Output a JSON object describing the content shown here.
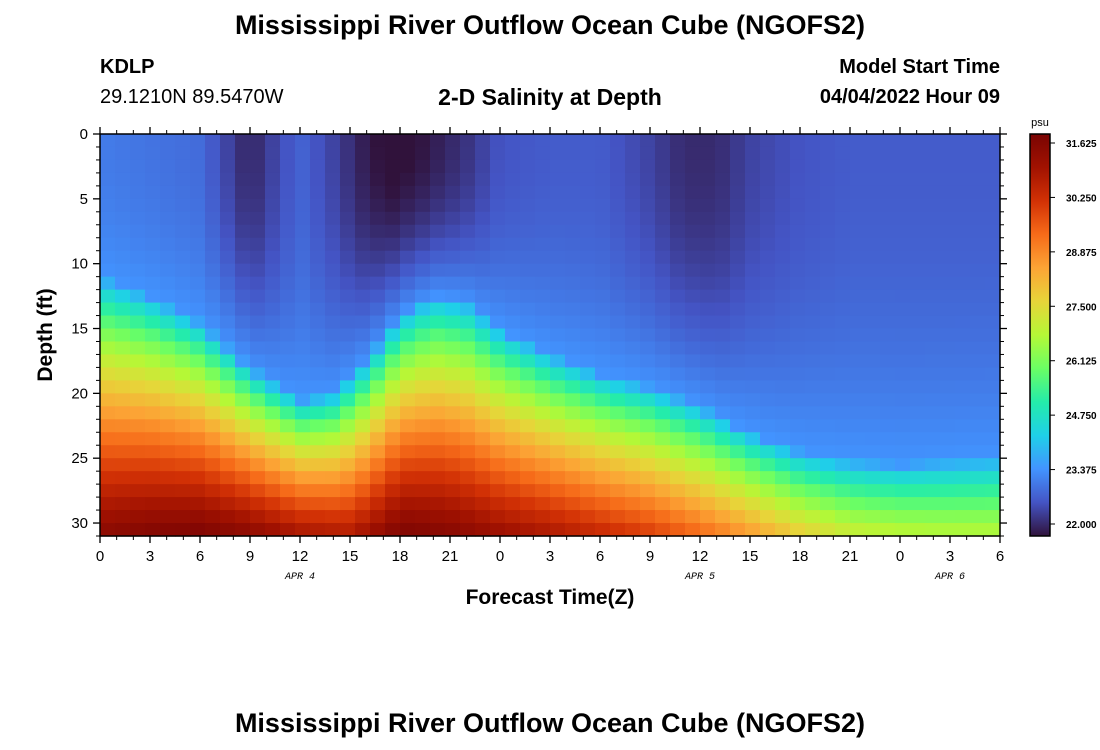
{
  "header": {
    "title": "Mississippi River Outflow Ocean Cube (NGOFS2)",
    "station": "KDLP",
    "coords": "29.1210N  89.5470W",
    "subtitle": "2-D Salinity at Depth",
    "model_start_label": "Model Start Time",
    "model_start_value": "04/04/2022 Hour 09"
  },
  "footer": {
    "title": "Mississippi River Outflow Ocean Cube (NGOFS2)"
  },
  "chart_data": {
    "type": "heatmap",
    "title": "2-D Salinity at Depth",
    "xlabel": "Forecast Time(Z)",
    "ylabel": "Depth (ft)",
    "x_range": [
      0,
      54
    ],
    "y_range": [
      0,
      31
    ],
    "x_ticks": [
      0,
      3,
      6,
      9,
      12,
      15,
      18,
      21,
      24,
      27,
      30,
      33,
      36,
      39,
      42,
      45,
      48,
      51,
      54
    ],
    "x_tick_labels": [
      "0",
      "3",
      "6",
      "9",
      "12",
      "15",
      "18",
      "21",
      "0",
      "3",
      "6",
      "9",
      "12",
      "15",
      "18",
      "21",
      "0",
      "3",
      "6"
    ],
    "y_ticks": [
      0,
      5,
      10,
      15,
      20,
      25,
      30
    ],
    "y_tick_labels": [
      "0",
      "5",
      "10",
      "15",
      "20",
      "25",
      "30"
    ],
    "date_labels": [
      {
        "text": "APR 4",
        "x": 12
      },
      {
        "text": "APR 5",
        "x": 36
      },
      {
        "text": "APR 6",
        "x": 51
      }
    ],
    "colorbar": {
      "unit": "psu",
      "min": 22.0,
      "max": 31.625,
      "ticks": [
        "31.625",
        "30.250",
        "28.875",
        "27.500",
        "26.125",
        "24.750",
        "23.375",
        "22.000"
      ],
      "colors": [
        "#30123b",
        "#4454c4",
        "#4294ff",
        "#1fd0e8",
        "#24ecaa",
        "#6bfe64",
        "#b5f836",
        "#e7d539",
        "#fca435",
        "#f66b19",
        "#d23105",
        "#a11201",
        "#7a0403"
      ]
    },
    "halocline_depth_ft": [
      [
        0,
        15.0
      ],
      [
        3,
        16.5
      ],
      [
        6,
        18.5
      ],
      [
        9,
        22.0
      ],
      [
        12,
        24.5
      ],
      [
        14,
        24.0
      ],
      [
        16,
        21.5
      ],
      [
        18,
        18.0
      ],
      [
        20,
        16.5
      ],
      [
        22,
        17.0
      ],
      [
        24,
        19.0
      ],
      [
        27,
        21.0
      ],
      [
        30,
        22.5
      ],
      [
        33,
        23.5
      ],
      [
        36,
        25.0
      ],
      [
        39,
        27.0
      ],
      [
        42,
        28.5
      ],
      [
        45,
        29.2
      ],
      [
        48,
        29.5
      ],
      [
        51,
        29.2
      ],
      [
        54,
        29.0
      ]
    ],
    "surface_salinity_psu": [
      [
        0,
        23.3
      ],
      [
        3,
        23.2
      ],
      [
        6,
        23.1
      ],
      [
        8,
        22.5
      ],
      [
        9,
        22.2
      ],
      [
        10,
        22.5
      ],
      [
        12,
        23.0
      ],
      [
        14,
        22.6
      ],
      [
        16,
        22.1
      ],
      [
        17.5,
        21.9
      ],
      [
        19,
        22.0
      ],
      [
        22,
        22.4
      ],
      [
        24,
        22.8
      ],
      [
        27,
        22.9
      ],
      [
        30,
        22.9
      ],
      [
        33,
        22.6
      ],
      [
        35,
        22.3
      ],
      [
        37,
        22.3
      ],
      [
        39,
        22.6
      ],
      [
        42,
        22.8
      ],
      [
        45,
        22.9
      ],
      [
        48,
        22.9
      ],
      [
        51,
        22.9
      ],
      [
        54,
        22.9
      ]
    ],
    "bottom_salinity_psu": [
      [
        0,
        31.3
      ],
      [
        3,
        31.5
      ],
      [
        6,
        31.6
      ],
      [
        9,
        31.3
      ],
      [
        12,
        30.8
      ],
      [
        15,
        30.6
      ],
      [
        18,
        31.6
      ],
      [
        21,
        31.4
      ],
      [
        24,
        31.0
      ],
      [
        27,
        30.7
      ],
      [
        30,
        30.3
      ],
      [
        33,
        29.9
      ],
      [
        36,
        29.3
      ],
      [
        39,
        28.6
      ],
      [
        42,
        27.8
      ],
      [
        45,
        27.2
      ],
      [
        48,
        27.0
      ],
      [
        51,
        26.9
      ],
      [
        54,
        26.9
      ]
    ]
  }
}
